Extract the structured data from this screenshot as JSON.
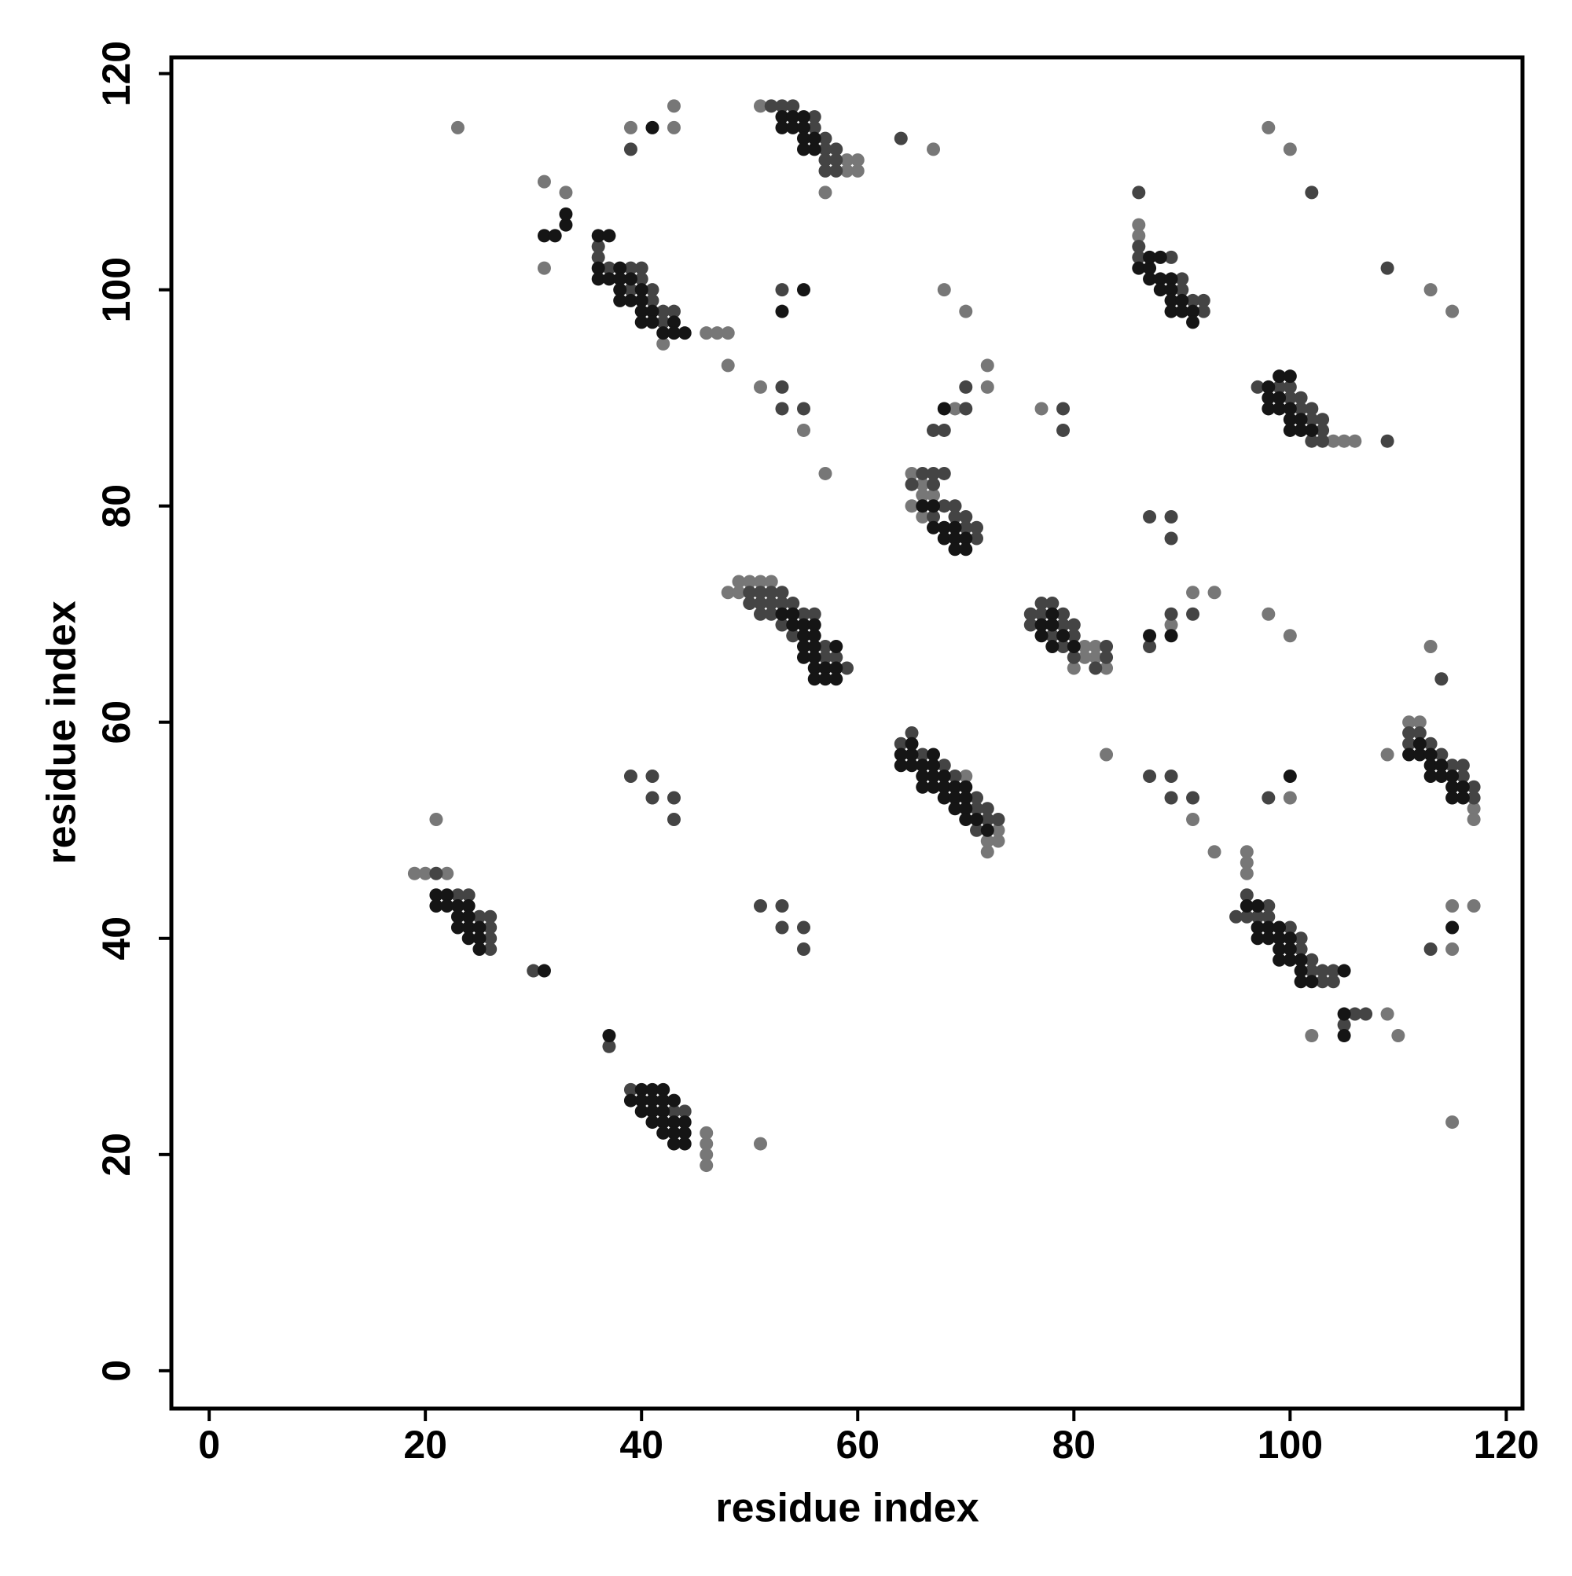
{
  "chart_data": {
    "type": "scatter",
    "xlabel": "residue index",
    "ylabel": "residue index",
    "xlim": [
      -3.5,
      121.5
    ],
    "ylim": [
      -3.5,
      121.5
    ],
    "xticks": [
      0,
      20,
      40,
      60,
      80,
      100,
      120
    ],
    "yticks": [
      0,
      20,
      40,
      60,
      80,
      100,
      120
    ],
    "series": [
      {
        "color": "#777777",
        "x": [
          23,
          21,
          19,
          20,
          22,
          46,
          46,
          46,
          46,
          51,
          49,
          50,
          51,
          52,
          48,
          49,
          83,
          65,
          66,
          67,
          66,
          65,
          66,
          69,
          72,
          72,
          68,
          70,
          67,
          57,
          81,
          82,
          82,
          81,
          80,
          83,
          77,
          93,
          91,
          89,
          91,
          93,
          31,
          33,
          31,
          39,
          43,
          43,
          51,
          55,
          46,
          47,
          48,
          48,
          42,
          51,
          59,
          60,
          59,
          60,
          57,
          98,
          100,
          113,
          115,
          96,
          96,
          96,
          102,
          109,
          110,
          98,
          100,
          100,
          111,
          112,
          109,
          117,
          117,
          113,
          115,
          117,
          115,
          115,
          72,
          73,
          73,
          104,
          105,
          106,
          86,
          86,
          70,
          72
        ],
        "y": [
          115,
          51,
          46,
          46,
          46,
          22,
          21,
          20,
          19,
          21,
          73,
          73,
          73,
          73,
          72,
          72,
          57,
          83,
          82,
          81,
          81,
          80,
          79,
          89,
          91,
          93,
          100,
          98,
          113,
          83,
          67,
          67,
          66,
          66,
          65,
          65,
          89,
          72,
          72,
          69,
          51,
          48,
          110,
          109,
          102,
          115,
          115,
          117,
          91,
          87,
          96,
          96,
          96,
          93,
          95,
          117,
          112,
          112,
          111,
          111,
          109,
          115,
          113,
          100,
          98,
          48,
          47,
          46,
          31,
          33,
          31,
          70,
          68,
          53,
          60,
          60,
          57,
          52,
          51,
          67,
          43,
          43,
          39,
          23,
          48,
          50,
          49,
          86,
          86,
          86,
          106,
          105,
          55,
          49
        ]
      },
      {
        "color": "#444444",
        "x": [
          21,
          23,
          24,
          25,
          26,
          26,
          26,
          26,
          30,
          37,
          39,
          43,
          44,
          39,
          41,
          41,
          43,
          43,
          51,
          53,
          53,
          55,
          55,
          50,
          51,
          52,
          53,
          50,
          51,
          52,
          53,
          54,
          51,
          52,
          55,
          56,
          53,
          54,
          57,
          57,
          58,
          59,
          65,
          64,
          66,
          68,
          69,
          71,
          71,
          72,
          72,
          73,
          71,
          66,
          67,
          68,
          65,
          67,
          68,
          69,
          67,
          69,
          70,
          70,
          71,
          71,
          67,
          68,
          70,
          70,
          77,
          78,
          76,
          77,
          79,
          76,
          79,
          80,
          78,
          80,
          79,
          83,
          80,
          83,
          82,
          79,
          79,
          87,
          89,
          89,
          87,
          89,
          91,
          87,
          89,
          89,
          91,
          36,
          36,
          37,
          39,
          40,
          40,
          39,
          41,
          41,
          42,
          43,
          42,
          39,
          53,
          53,
          53,
          55,
          52,
          53,
          54,
          56,
          56,
          57,
          57,
          58,
          57,
          58,
          57,
          58,
          64,
          86,
          86,
          86,
          89,
          90,
          90,
          91,
          92,
          92,
          97,
          99,
          100,
          100,
          101,
          101,
          102,
          102,
          103,
          103,
          102,
          103,
          109,
          102,
          109,
          95,
          96,
          98,
          96,
          97,
          98,
          100,
          101,
          101,
          102,
          102,
          103,
          104,
          103,
          104,
          98,
          111,
          112,
          111,
          113,
          114,
          115,
          116,
          116,
          117,
          117,
          114,
          113,
          107,
          106,
          105
        ],
        "y": [
          46,
          44,
          44,
          42,
          42,
          41,
          40,
          39,
          37,
          30,
          26,
          24,
          24,
          55,
          55,
          53,
          53,
          51,
          43,
          43,
          41,
          41,
          39,
          72,
          72,
          72,
          72,
          71,
          71,
          71,
          71,
          71,
          70,
          70,
          70,
          70,
          69,
          68,
          67,
          66,
          66,
          65,
          59,
          58,
          57,
          56,
          55,
          53,
          52,
          52,
          51,
          51,
          50,
          83,
          83,
          83,
          82,
          82,
          80,
          80,
          79,
          79,
          79,
          78,
          78,
          77,
          87,
          87,
          89,
          91,
          71,
          71,
          70,
          70,
          70,
          69,
          69,
          69,
          68,
          68,
          67,
          67,
          66,
          66,
          65,
          89,
          87,
          79,
          79,
          77,
          67,
          70,
          70,
          55,
          55,
          53,
          53,
          104,
          103,
          102,
          102,
          102,
          101,
          100,
          100,
          99,
          98,
          98,
          97,
          113,
          100,
          91,
          89,
          89,
          117,
          117,
          117,
          116,
          115,
          114,
          113,
          113,
          112,
          112,
          111,
          111,
          114,
          109,
          104,
          103,
          103,
          101,
          100,
          99,
          99,
          98,
          91,
          91,
          91,
          90,
          90,
          89,
          89,
          88,
          88,
          87,
          86,
          86,
          86,
          109,
          102,
          42,
          44,
          43,
          42,
          42,
          42,
          41,
          40,
          39,
          38,
          37,
          37,
          37,
          36,
          36,
          53,
          59,
          59,
          58,
          58,
          57,
          56,
          56,
          55,
          54,
          53,
          64,
          39,
          33,
          33,
          32
        ]
      },
      {
        "color": "#151515",
        "x": [
          21,
          22,
          21,
          22,
          23,
          24,
          23,
          24,
          23,
          24,
          25,
          24,
          25,
          25,
          31,
          37,
          40,
          41,
          42,
          39,
          40,
          41,
          42,
          43,
          40,
          41,
          42,
          41,
          42,
          43,
          44,
          42,
          43,
          44,
          43,
          44,
          53,
          54,
          54,
          55,
          56,
          55,
          56,
          55,
          56,
          58,
          55,
          56,
          56,
          57,
          58,
          56,
          57,
          58,
          64,
          65,
          67,
          65,
          64,
          65,
          66,
          67,
          66,
          67,
          68,
          66,
          67,
          68,
          69,
          70,
          68,
          69,
          70,
          69,
          70,
          70,
          71,
          72,
          66,
          67,
          67,
          68,
          69,
          68,
          69,
          70,
          69,
          70,
          68,
          78,
          77,
          78,
          77,
          79,
          78,
          80,
          87,
          89,
          31,
          32,
          36,
          37,
          33,
          33,
          36,
          38,
          36,
          37,
          38,
          39,
          38,
          40,
          38,
          39,
          40,
          40,
          41,
          40,
          41,
          43,
          42,
          43,
          44,
          41,
          55,
          53,
          53,
          54,
          55,
          53,
          54,
          55,
          55,
          56,
          55,
          56,
          86,
          87,
          87,
          88,
          87,
          88,
          89,
          88,
          89,
          89,
          90,
          89,
          90,
          91,
          91,
          99,
          100,
          98,
          98,
          99,
          98,
          99,
          100,
          100,
          101,
          100,
          101,
          102,
          96,
          97,
          97,
          98,
          99,
          97,
          98,
          99,
          100,
          99,
          100,
          99,
          100,
          101,
          101,
          101,
          102,
          105,
          105,
          105,
          100,
          115,
          112,
          111,
          112,
          113,
          113,
          114,
          113,
          114,
          115,
          115,
          116,
          115,
          116
        ],
        "y": [
          44,
          44,
          43,
          43,
          43,
          43,
          42,
          42,
          41,
          41,
          41,
          40,
          40,
          39,
          37,
          31,
          26,
          26,
          26,
          25,
          25,
          25,
          25,
          25,
          24,
          24,
          24,
          23,
          23,
          23,
          23,
          22,
          22,
          22,
          21,
          21,
          70,
          70,
          69,
          69,
          69,
          68,
          68,
          67,
          67,
          67,
          66,
          66,
          65,
          65,
          65,
          64,
          64,
          64,
          57,
          57,
          57,
          58,
          56,
          56,
          56,
          56,
          55,
          55,
          55,
          54,
          54,
          54,
          54,
          54,
          53,
          53,
          53,
          52,
          52,
          51,
          51,
          50,
          80,
          80,
          78,
          78,
          78,
          77,
          77,
          77,
          76,
          76,
          89,
          70,
          69,
          69,
          68,
          68,
          67,
          67,
          68,
          68,
          105,
          105,
          105,
          105,
          106,
          107,
          102,
          102,
          101,
          101,
          101,
          101,
          100,
          100,
          99,
          99,
          99,
          98,
          98,
          97,
          97,
          97,
          96,
          96,
          96,
          115,
          100,
          98,
          116,
          116,
          116,
          115,
          115,
          115,
          114,
          114,
          113,
          113,
          102,
          102,
          103,
          103,
          101,
          101,
          101,
          100,
          100,
          99,
          99,
          98,
          98,
          98,
          97,
          92,
          92,
          91,
          90,
          90,
          89,
          89,
          89,
          88,
          88,
          87,
          87,
          87,
          43,
          43,
          41,
          41,
          41,
          40,
          40,
          40,
          40,
          39,
          39,
          38,
          38,
          38,
          37,
          36,
          36,
          37,
          33,
          31,
          55,
          41,
          58,
          57,
          57,
          57,
          56,
          56,
          55,
          55,
          55,
          54,
          54,
          53,
          53
        ]
      }
    ]
  }
}
